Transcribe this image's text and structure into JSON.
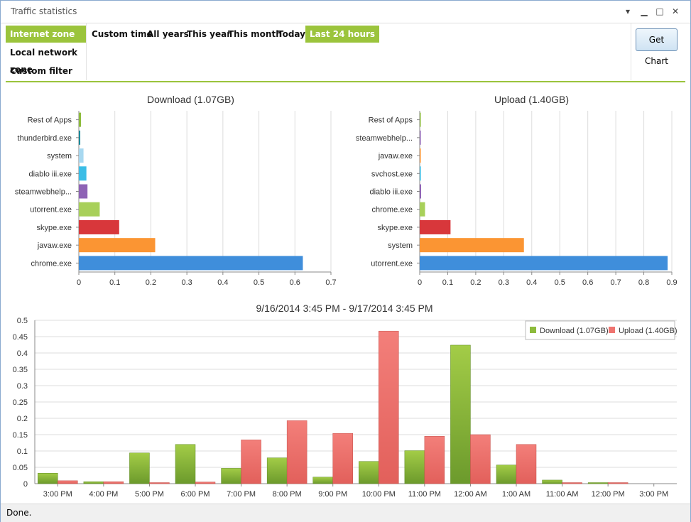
{
  "window": {
    "title": "Traffic statistics",
    "menu_glyph": "▾",
    "minimize_glyph": "▁",
    "maximize_glyph": "□",
    "close_glyph": "✕"
  },
  "zones": [
    {
      "label": "Internet zone",
      "active": true
    },
    {
      "label": "Local network zone",
      "active": false
    },
    {
      "label": "Custom filter",
      "active": false
    }
  ],
  "time_ranges": [
    {
      "label": "Custom time",
      "active": false
    },
    {
      "label": "All years",
      "active": false
    },
    {
      "label": "This year",
      "active": false
    },
    {
      "label": "This month",
      "active": false
    },
    {
      "label": "Today",
      "active": false
    },
    {
      "label": "Last 24 hours",
      "active": true
    }
  ],
  "get_chart_label": "Get Chart",
  "status": "Done.",
  "colors": {
    "accent": "#9bc43c",
    "download": "#8dbb3c",
    "upload": "#ef7470"
  },
  "chart_data": [
    {
      "type": "bar",
      "orientation": "horizontal",
      "title": "Download (1.07GB)",
      "categories": [
        "Rest of Apps",
        "thunderbird.exe",
        "system",
        "diablo iii.exe",
        "steamwebhelp...",
        "utorrent.exe",
        "skype.exe",
        "javaw.exe",
        "chrome.exe"
      ],
      "values": [
        0.006,
        0.004,
        0.013,
        0.021,
        0.024,
        0.058,
        0.112,
        0.212,
        0.622
      ],
      "colors": [
        "#8dbb3c",
        "#1b8a9a",
        "#a8d8f0",
        "#3bbde6",
        "#8e63b5",
        "#a8d05a",
        "#d8373b",
        "#fb9533",
        "#3f8edb"
      ],
      "xlim": [
        0,
        0.7
      ],
      "xticks": [
        "0",
        "0.1",
        "0.2",
        "0.3",
        "0.4",
        "0.5",
        "0.6",
        "0.7"
      ],
      "grid": true
    },
    {
      "type": "bar",
      "orientation": "horizontal",
      "title": "Upload (1.40GB)",
      "categories": [
        "Rest of Apps",
        "steamwebhelp...",
        "javaw.exe",
        "svchost.exe",
        "diablo iii.exe",
        "chrome.exe",
        "skype.exe",
        "system",
        "utorrent.exe"
      ],
      "values": [
        0.001,
        0.001,
        0.001,
        0.004,
        0.005,
        0.019,
        0.11,
        0.372,
        0.885
      ],
      "colors": [
        "#8dbb3c",
        "#8e63b5",
        "#fb9533",
        "#3bbde6",
        "#8e63b5",
        "#a8d05a",
        "#d8373b",
        "#fb9533",
        "#3f8edb"
      ],
      "xlim": [
        0,
        0.9
      ],
      "xticks": [
        "0",
        "0.1",
        "0.2",
        "0.3",
        "0.4",
        "0.5",
        "0.6",
        "0.7",
        "0.8",
        "0.9"
      ],
      "grid": true
    },
    {
      "type": "bar",
      "orientation": "vertical",
      "title": "9/16/2014 3:45 PM - 9/17/2014 3:45 PM",
      "categories": [
        "3:00 PM",
        "4:00 PM",
        "5:00 PM",
        "6:00 PM",
        "7:00 PM",
        "8:00 PM",
        "9:00 PM",
        "10:00 PM",
        "11:00 PM",
        "12:00 AM",
        "1:00 AM",
        "11:00 AM",
        "12:00 PM",
        "3:00 PM"
      ],
      "series": [
        {
          "name": "Download (1.07GB)",
          "values": [
            0.032,
            0.006,
            0.094,
            0.12,
            0.047,
            0.079,
            0.02,
            0.068,
            0.101,
            0.424,
            0.057,
            0.011,
            0.003,
            0.0
          ]
        },
        {
          "name": "Upload (1.40GB)",
          "values": [
            0.009,
            0.006,
            0.003,
            0.005,
            0.134,
            0.193,
            0.154,
            0.467,
            0.145,
            0.15,
            0.12,
            0.001,
            0.002,
            0.0
          ]
        }
      ],
      "ylim": [
        0,
        0.5
      ],
      "yticks": [
        "0",
        "0.05",
        "0.1",
        "0.15",
        "0.2",
        "0.25",
        "0.3",
        "0.35",
        "0.4",
        "0.45",
        "0.5"
      ],
      "legend": "top-right",
      "grid": true
    }
  ]
}
